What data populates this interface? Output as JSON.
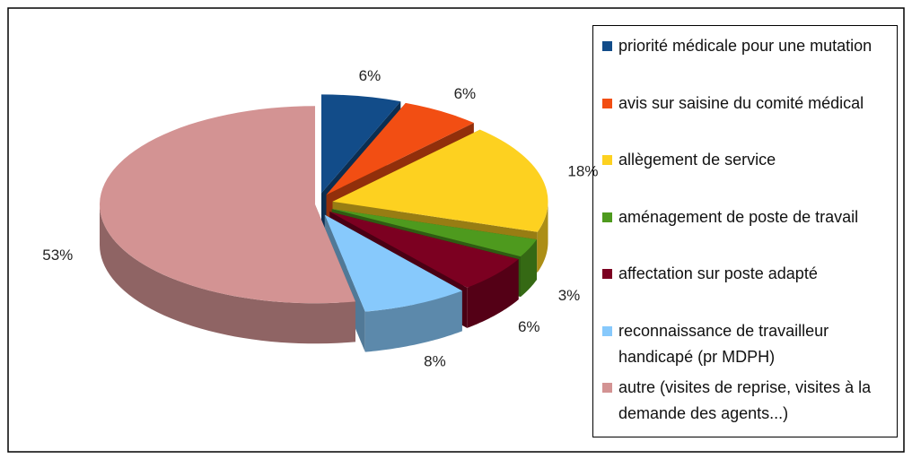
{
  "chart_data": {
    "type": "pie",
    "categories": [
      "priorité médicale pour une mutation",
      "avis sur saisine du comité médical",
      "allègement de service",
      "aménagement de poste de travail",
      "affectation sur poste adapté",
      "reconnaissance de travailleur handicapé (pr MDPH)",
      "autre (visites de reprise, visites à la demande des agents...)"
    ],
    "values": [
      6,
      6,
      18,
      3,
      6,
      8,
      53
    ],
    "value_labels": [
      "6%",
      "6%",
      "18%",
      "3%",
      "6%",
      "8%",
      "53%"
    ],
    "colors": [
      "#124c89",
      "#f24e13",
      "#fdd120",
      "#4e9a1e",
      "#7c0021",
      "#87c9fc",
      "#d39393"
    ],
    "legend": "right"
  }
}
